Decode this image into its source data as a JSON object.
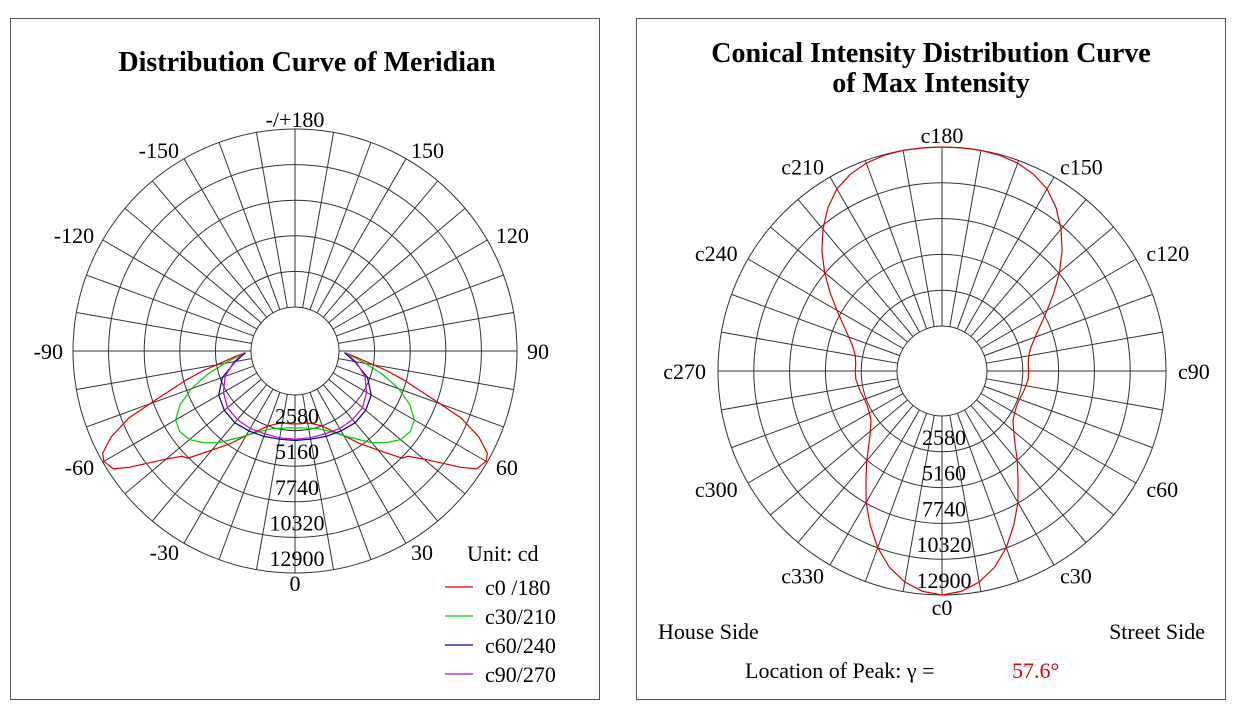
{
  "chart_data": [
    {
      "type": "polar",
      "title": "Distribution Curve of  Meridian",
      "unit_label": "Unit: cd",
      "radial_ticks": [
        2580,
        5160,
        7740,
        10320,
        12900
      ],
      "radial_max": 12900,
      "angle_labels": [
        {
          "angle": 0,
          "text": "0"
        },
        {
          "angle": 30,
          "text": "30"
        },
        {
          "angle": 60,
          "text": "60"
        },
        {
          "angle": 90,
          "text": "90"
        },
        {
          "angle": 120,
          "text": "120"
        },
        {
          "angle": 150,
          "text": "150"
        },
        {
          "angle": 180,
          "text": "-/+180"
        },
        {
          "angle": -150,
          "text": "-150"
        },
        {
          "angle": -120,
          "text": "-120"
        },
        {
          "angle": -90,
          "text": "-90"
        },
        {
          "angle": -60,
          "text": "-60"
        },
        {
          "angle": -30,
          "text": "-30"
        }
      ],
      "legend_position": "bottom-right",
      "series": [
        {
          "name": "c0 /180",
          "color": "#e00000",
          "angle": [
            -88,
            -85,
            -80,
            -78,
            -75,
            -70,
            -68,
            -65,
            -62,
            -60,
            -57,
            -55,
            -50,
            -47,
            -45,
            -40,
            -35,
            -30,
            -25,
            -20,
            -15,
            -10,
            -5,
            0,
            5,
            10,
            15,
            20,
            25,
            30,
            35,
            40,
            45,
            47,
            50,
            55,
            57,
            60,
            62,
            65,
            68,
            70,
            75,
            78,
            80,
            85,
            88
          ],
          "value": [
            400,
            1100,
            2600,
            3600,
            5000,
            8000,
            9800,
            11500,
            12600,
            12800,
            12500,
            11500,
            9000,
            8000,
            7800,
            6200,
            5000,
            3900,
            3200,
            2600,
            2300,
            2100,
            2100,
            2100,
            2100,
            2100,
            2300,
            2600,
            3200,
            3900,
            5000,
            6200,
            7800,
            8000,
            9000,
            11500,
            12500,
            12800,
            12600,
            11500,
            9800,
            8000,
            5000,
            3600,
            2600,
            1100,
            400
          ]
        },
        {
          "name": "c30/210",
          "color": "#00cc00",
          "angle": [
            -88,
            -85,
            -80,
            -75,
            -70,
            -65,
            -60,
            -55,
            -50,
            -45,
            -40,
            -35,
            -30,
            -25,
            -20,
            -15,
            -10,
            -5,
            0,
            5,
            10,
            15,
            20,
            25,
            30,
            35,
            40,
            45,
            50,
            55,
            60,
            65,
            70,
            75,
            80,
            85,
            88
          ],
          "value": [
            400,
            900,
            2000,
            3400,
            4800,
            6000,
            6800,
            7000,
            6800,
            6200,
            5500,
            4600,
            3900,
            3300,
            2900,
            2600,
            2500,
            2400,
            2400,
            2400,
            2500,
            2600,
            2900,
            3300,
            3900,
            4600,
            5500,
            6200,
            6800,
            7000,
            6800,
            6000,
            4800,
            3400,
            2000,
            900,
            400
          ]
        },
        {
          "name": "c60/240",
          "color": "#000099",
          "angle": [
            -88,
            -80,
            -70,
            -60,
            -50,
            -40,
            -30,
            -20,
            -10,
            0,
            10,
            20,
            30,
            40,
            50,
            60,
            70,
            80,
            88
          ],
          "value": [
            400,
            1200,
            2400,
            3200,
            3500,
            3600,
            3500,
            3400,
            3300,
            3300,
            3300,
            3400,
            3500,
            3600,
            3500,
            3200,
            2400,
            1200,
            400
          ]
        },
        {
          "name": "c90/270",
          "color": "#cc00cc",
          "angle": [
            -88,
            -80,
            -70,
            -60,
            -50,
            -40,
            -30,
            -20,
            -10,
            0,
            10,
            20,
            30,
            40,
            50,
            60,
            70,
            80,
            88
          ],
          "value": [
            500,
            1300,
            2200,
            2800,
            3200,
            3300,
            3300,
            3200,
            3200,
            3200,
            3200,
            3200,
            3300,
            3300,
            3200,
            2800,
            2200,
            1300,
            500
          ]
        }
      ]
    },
    {
      "type": "polar",
      "title": "Conical Intensity Distribution Curve",
      "title_line2": "of  Max Intensity",
      "radial_ticks": [
        2580,
        5160,
        7740,
        10320,
        12900
      ],
      "radial_max": 12900,
      "angle_labels": [
        {
          "angle": 0,
          "text": "c0"
        },
        {
          "angle": 30,
          "text": "c30"
        },
        {
          "angle": 60,
          "text": "c60"
        },
        {
          "angle": 90,
          "text": "c90"
        },
        {
          "angle": 120,
          "text": "c120"
        },
        {
          "angle": 150,
          "text": "c150"
        },
        {
          "angle": 180,
          "text": "c180"
        },
        {
          "angle": 210,
          "text": "c210"
        },
        {
          "angle": 240,
          "text": "c240"
        },
        {
          "angle": 270,
          "text": "c270"
        },
        {
          "angle": 300,
          "text": "c300"
        },
        {
          "angle": 330,
          "text": "c330"
        }
      ],
      "house_side": "House Side",
      "street_side": "Street Side",
      "peak_label": "Location of  Peak:  γ  =",
      "peak_value": "57.6°",
      "peak_color": "#e00000",
      "series": [
        {
          "name": "",
          "color": "#e00000",
          "angle": [
            0,
            5,
            10,
            15,
            20,
            25,
            30,
            35,
            40,
            45,
            50,
            55,
            60,
            65,
            70,
            75,
            80,
            85,
            90,
            95,
            100,
            105,
            110,
            115,
            120,
            125,
            130,
            135,
            140,
            145,
            150,
            155,
            160,
            165,
            170,
            175,
            180,
            185,
            190,
            195,
            200,
            205,
            210,
            215,
            220,
            225,
            230,
            235,
            240,
            245,
            250,
            255,
            260,
            265,
            270,
            275,
            280,
            285,
            290,
            295,
            300,
            305,
            310,
            315,
            320,
            325,
            330,
            335,
            340,
            345,
            350,
            355
          ],
          "value": [
            12900,
            12700,
            12200,
            11400,
            10300,
            9000,
            7700,
            6300,
            5200,
            4200,
            3500,
            3000,
            2800,
            2700,
            2700,
            2800,
            2900,
            3000,
            3000,
            3000,
            3100,
            3400,
            3900,
            4600,
            5500,
            6600,
            7800,
            9000,
            10100,
            11100,
            11900,
            12400,
            12700,
            12850,
            12900,
            12900,
            12900,
            12900,
            12900,
            12850,
            12700,
            12400,
            11900,
            11100,
            10100,
            9000,
            7800,
            6600,
            5500,
            4600,
            3900,
            3400,
            3100,
            3000,
            3000,
            3000,
            2900,
            2800,
            2700,
            2700,
            2800,
            3000,
            3500,
            4200,
            5200,
            6300,
            7700,
            9000,
            10300,
            11400,
            12200,
            12700
          ]
        }
      ]
    }
  ]
}
